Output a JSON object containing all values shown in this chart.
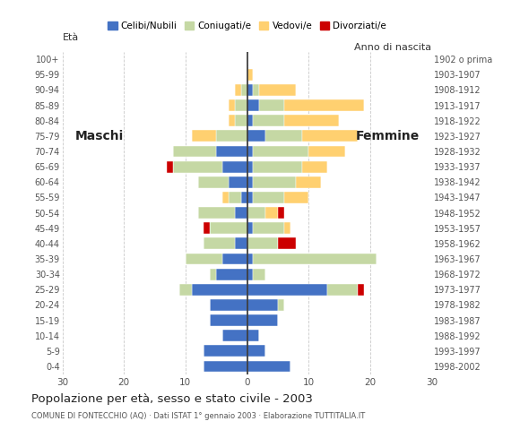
{
  "age_groups": [
    "0-4",
    "5-9",
    "10-14",
    "15-19",
    "20-24",
    "25-29",
    "30-34",
    "35-39",
    "40-44",
    "45-49",
    "50-54",
    "55-59",
    "60-64",
    "65-69",
    "70-74",
    "75-79",
    "80-84",
    "85-89",
    "90-94",
    "95-99",
    "100+"
  ],
  "birth_years": [
    "1998-2002",
    "1993-1997",
    "1988-1992",
    "1983-1987",
    "1978-1982",
    "1973-1977",
    "1968-1972",
    "1963-1967",
    "1958-1962",
    "1953-1957",
    "1948-1952",
    "1943-1947",
    "1938-1942",
    "1933-1937",
    "1928-1932",
    "1923-1927",
    "1918-1922",
    "1913-1917",
    "1908-1912",
    "1903-1907",
    "1902 o prima"
  ],
  "colors": {
    "celibe": "#4472C4",
    "coniugato": "#C5D8A4",
    "vedovo": "#FFD070",
    "divorziato": "#CC0000"
  },
  "males": {
    "celibe": [
      7,
      7,
      4,
      6,
      6,
      9,
      5,
      4,
      2,
      0,
      2,
      1,
      3,
      4,
      5,
      0,
      0,
      0,
      0,
      0,
      0
    ],
    "coniugato": [
      0,
      0,
      0,
      0,
      0,
      2,
      1,
      6,
      5,
      6,
      6,
      2,
      5,
      8,
      7,
      5,
      2,
      2,
      1,
      0,
      0
    ],
    "vedovo": [
      0,
      0,
      0,
      0,
      0,
      0,
      0,
      0,
      0,
      0,
      0,
      1,
      0,
      0,
      0,
      4,
      1,
      1,
      1,
      0,
      0
    ],
    "divorziato": [
      0,
      0,
      0,
      0,
      0,
      0,
      0,
      0,
      0,
      1,
      0,
      0,
      0,
      1,
      0,
      0,
      0,
      0,
      0,
      0,
      0
    ]
  },
  "females": {
    "celibe": [
      7,
      3,
      2,
      5,
      5,
      13,
      1,
      1,
      0,
      1,
      0,
      1,
      1,
      1,
      1,
      3,
      1,
      2,
      1,
      0,
      0
    ],
    "coniugato": [
      0,
      0,
      0,
      0,
      1,
      5,
      2,
      20,
      5,
      5,
      3,
      5,
      7,
      8,
      9,
      6,
      5,
      4,
      1,
      0,
      0
    ],
    "vedovo": [
      0,
      0,
      0,
      0,
      0,
      0,
      0,
      0,
      0,
      1,
      2,
      4,
      4,
      4,
      6,
      9,
      9,
      13,
      6,
      1,
      0
    ],
    "divorziato": [
      0,
      0,
      0,
      0,
      0,
      1,
      0,
      0,
      3,
      0,
      1,
      0,
      0,
      0,
      0,
      0,
      0,
      0,
      0,
      0,
      0
    ]
  },
  "xlim": 30,
  "title": "Popolazione per età, sesso e stato civile - 2003",
  "subtitle": "COMUNE DI FONTECCHIO (AQ) · Dati ISTAT 1° gennaio 2003 · Elaborazione TUTTITALIA.IT",
  "ylabel_left": "Età",
  "ylabel_right": "Anno di nascita",
  "label_maschi": "Maschi",
  "label_femmine": "Femmine",
  "legend_labels": [
    "Celibi/Nubili",
    "Coniugati/e",
    "Vedovi/e",
    "Divorziati/e"
  ],
  "background_color": "#ffffff",
  "grid_color": "#aaaaaa"
}
